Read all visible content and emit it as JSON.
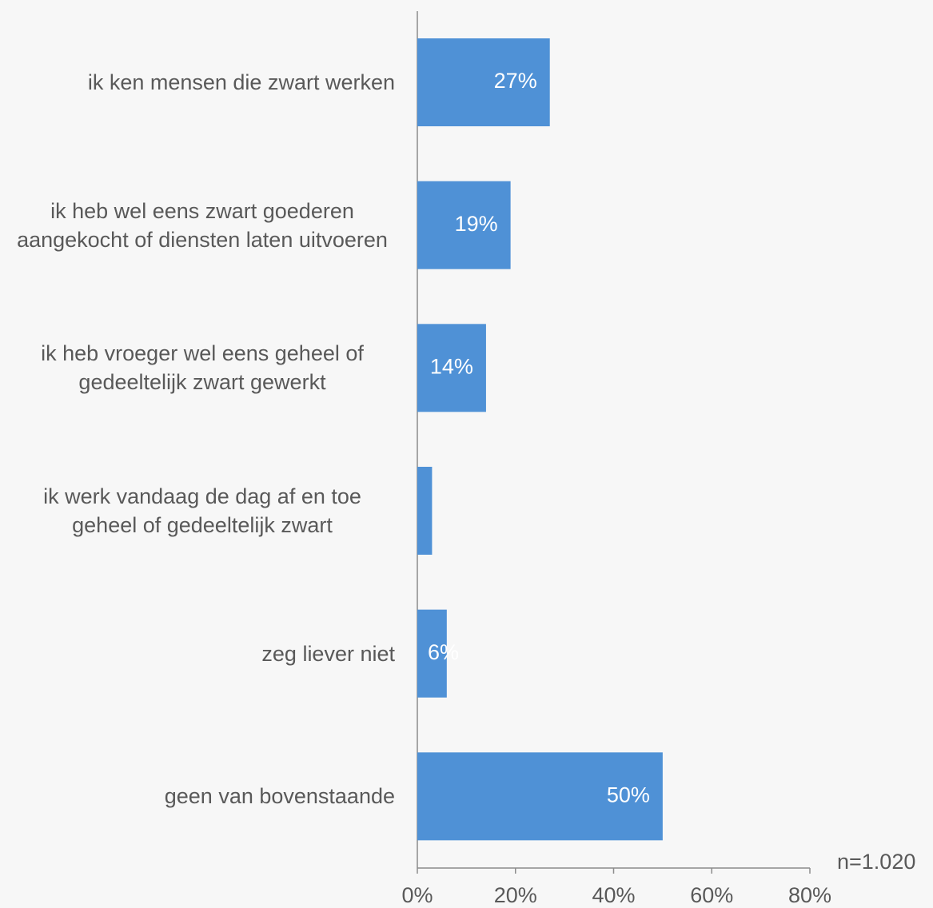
{
  "chart_data": {
    "type": "bar",
    "orientation": "horizontal",
    "categories": [
      "ik ken mensen die zwart werken",
      "ik heb wel eens zwart goederen aangekocht of diensten laten uitvoeren",
      "ik heb vroeger wel eens geheel of gedeeltelijk zwart gewerkt",
      "ik werk vandaag de dag af en toe geheel of gedeeltelijk zwart",
      "zeg liever niet",
      "geen van bovenstaande"
    ],
    "values": [
      27,
      19,
      14,
      3,
      6,
      50
    ],
    "value_labels": [
      "27%",
      "19%",
      "14%",
      null,
      "6%",
      "50%"
    ],
    "color": "#4f91d6",
    "xlim": [
      0,
      80
    ],
    "xticks": [
      {
        "value": 0,
        "label": "0%"
      },
      {
        "value": 20,
        "label": "20%"
      },
      {
        "value": 40,
        "label": "40%"
      },
      {
        "value": 60,
        "label": "60%"
      },
      {
        "value": 80,
        "label": "80%"
      }
    ],
    "grid": false,
    "annotation": "n=1.020"
  }
}
